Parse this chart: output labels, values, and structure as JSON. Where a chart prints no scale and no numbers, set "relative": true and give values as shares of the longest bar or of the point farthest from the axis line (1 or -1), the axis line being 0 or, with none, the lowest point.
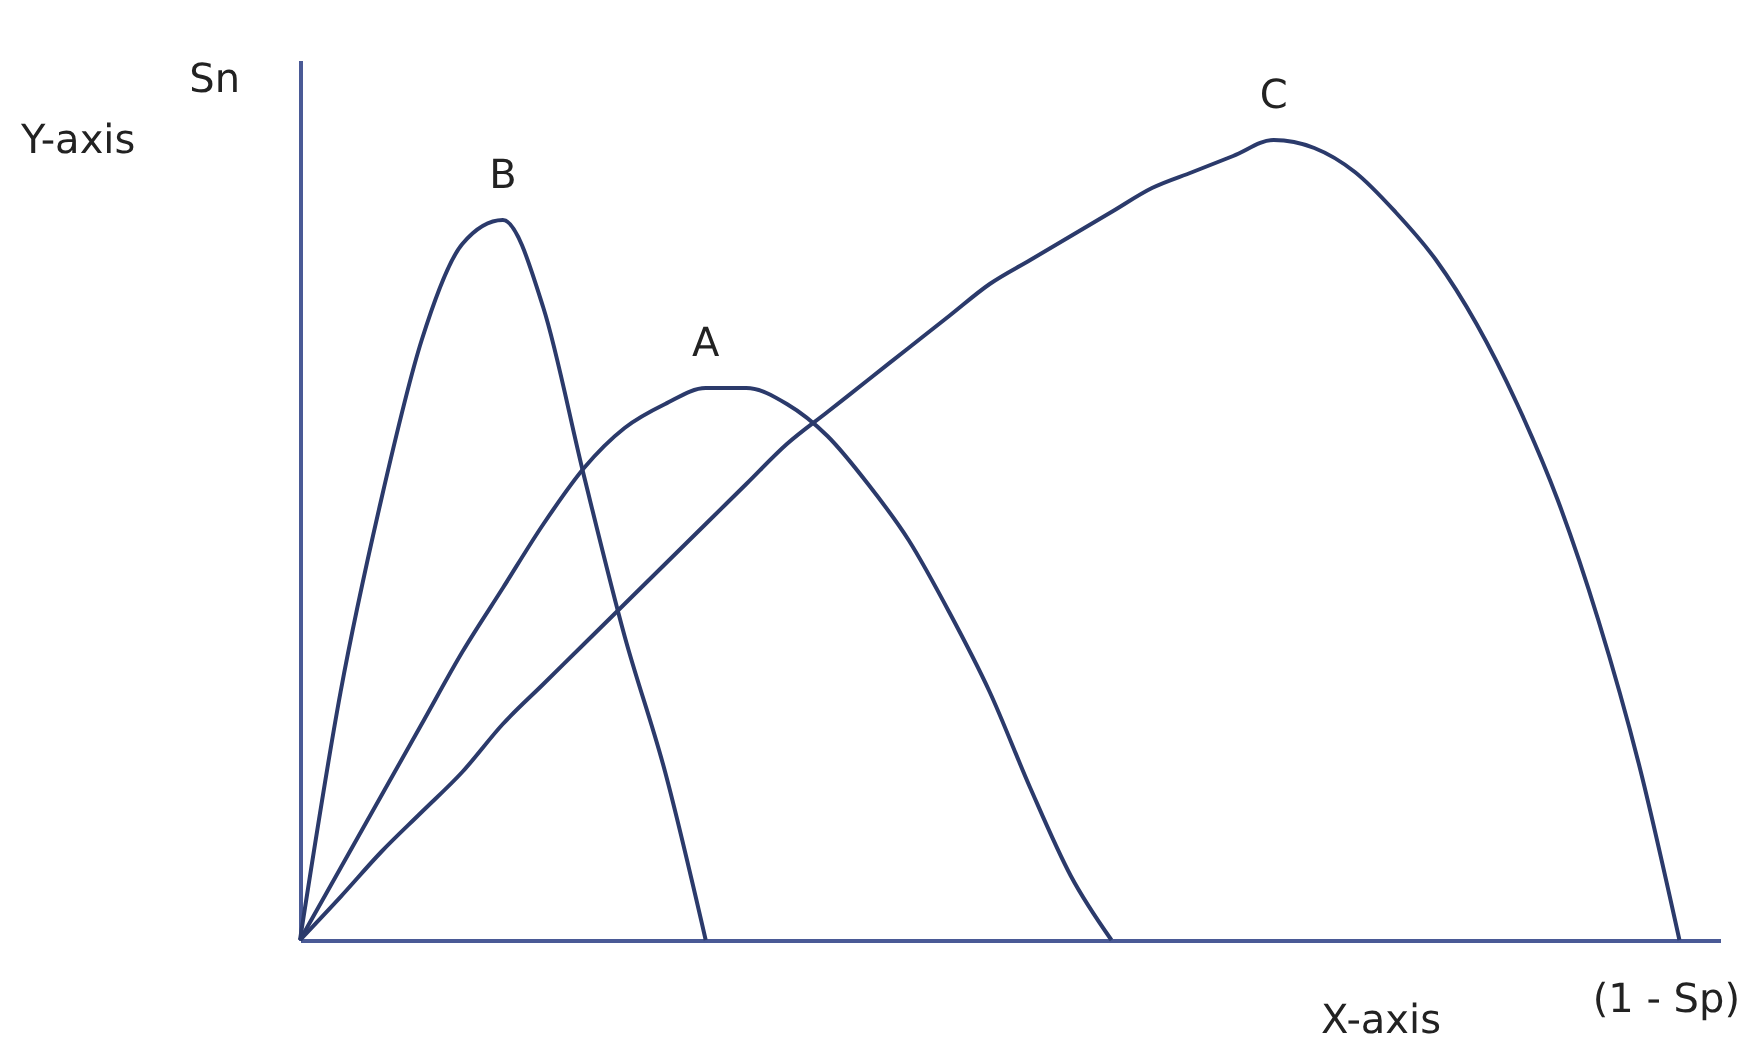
{
  "chart_data": {
    "type": "line",
    "relative": true,
    "xlabel": "X-axis",
    "ylabel": "Y-axis",
    "annotations": [
      "Sn",
      "(1 - Sp)"
    ],
    "legend": false,
    "grid": false,
    "marker": "none",
    "line_style": "solid",
    "categories": [
      null,
      null,
      null,
      null,
      null,
      null,
      null,
      null,
      null,
      null,
      null,
      null,
      null,
      null,
      null,
      null,
      null,
      null,
      null,
      null,
      null,
      null,
      null,
      null,
      null,
      null,
      null,
      null,
      null,
      null,
      null,
      null,
      null,
      null,
      null,
      null
    ],
    "series": [
      {
        "name": "B",
        "color": "#2b3a6b",
        "values": [
          0,
          0.31,
          0.55,
          0.75,
          0.87,
          0.9,
          0.79,
          0.58,
          0.38,
          0.21,
          0,
          null,
          null,
          null,
          null,
          null,
          null,
          null,
          null,
          null,
          null,
          null,
          null,
          null,
          null,
          null,
          null,
          null,
          null,
          null,
          null,
          null,
          null,
          null,
          null,
          null
        ]
      },
      {
        "name": "A",
        "color": "#2b3a6b",
        "values": [
          0,
          0.09,
          0.18,
          0.27,
          0.36,
          0.44,
          0.52,
          0.59,
          0.64,
          0.67,
          0.69,
          0.69,
          0.67,
          0.63,
          0.57,
          0.5,
          0.41,
          0.31,
          0.19,
          0.08,
          0,
          null,
          null,
          null,
          null,
          null,
          null,
          null,
          null,
          null,
          null,
          null,
          null,
          null,
          null,
          null
        ]
      },
      {
        "name": "C",
        "color": "#2b3a6b",
        "values": [
          0,
          0.054,
          0.11,
          0.16,
          0.21,
          0.27,
          0.32,
          0.37,
          0.42,
          0.47,
          0.52,
          0.57,
          0.62,
          0.66,
          0.7,
          0.74,
          0.78,
          0.82,
          0.85,
          0.88,
          0.91,
          0.94,
          0.96,
          0.98,
          1,
          0.99,
          0.96,
          0.91,
          0.85,
          0.77,
          0.67,
          0.55,
          0.4,
          0.22,
          0,
          null
        ]
      }
    ]
  }
}
